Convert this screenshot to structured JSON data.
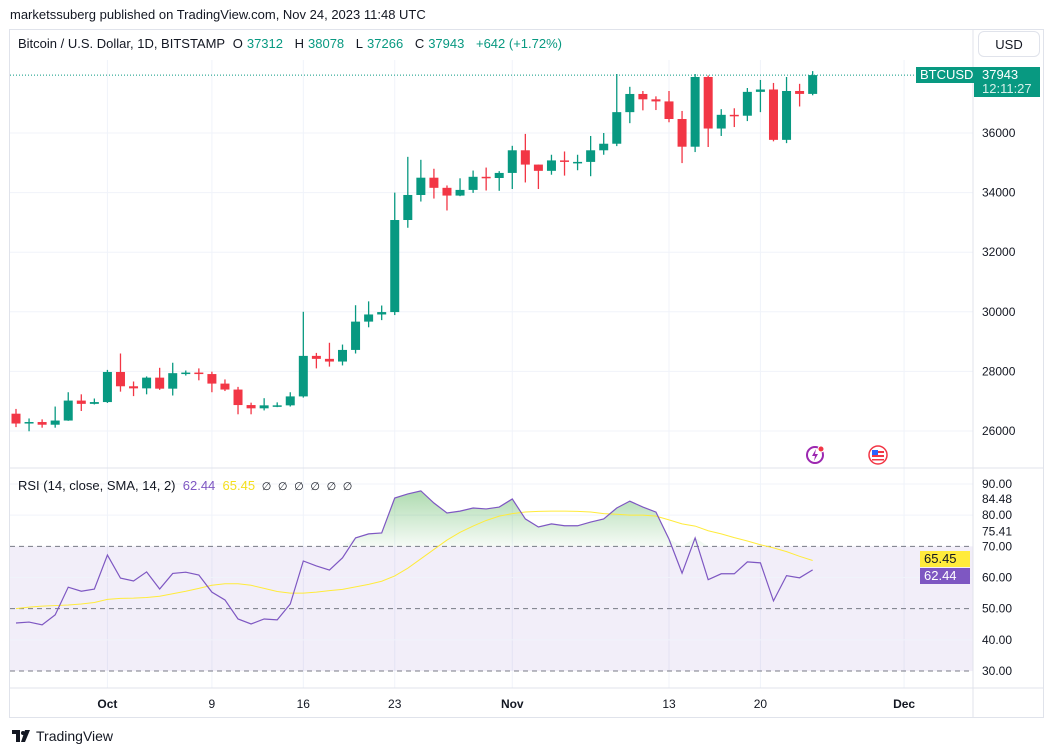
{
  "publisher_line": "marketssuberg published on TradingView.com, Nov 24, 2023 11:48 UTC",
  "legend": {
    "symbol": "Bitcoin / U.S. Dollar, 1D, BITSTAMP",
    "o_label": "O",
    "o": "37312",
    "h_label": "H",
    "h": "38078",
    "l_label": "L",
    "l": "37266",
    "c_label": "C",
    "c": "37943",
    "change": "+642 (+1.72%)"
  },
  "currency_button": "USD",
  "price_tag": {
    "symbol": "BTCUSD",
    "price": "37943",
    "countdown": "12:11:27"
  },
  "colors": {
    "up": "#089981",
    "down": "#f23645",
    "rsi": "#7e57c2",
    "sma": "#f5df1e"
  },
  "rsi_legend": {
    "label": "RSI (14, close, SMA, 14, 2)",
    "rsi_value": "62.44",
    "sma_value": "65.45",
    "empty_icons": [
      "∅",
      "∅",
      "∅",
      "∅",
      "∅",
      "∅"
    ]
  },
  "footer": {
    "brand": "TradingView"
  },
  "chart_data": {
    "type": "candlestick",
    "dates_start": "2023-09-24",
    "dates_end": "2023-11-24",
    "ohlc": [
      [
        26580,
        26740,
        26130,
        26250
      ],
      [
        26250,
        26420,
        25990,
        26300
      ],
      [
        26300,
        26390,
        26110,
        26210
      ],
      [
        26210,
        26820,
        26110,
        26350
      ],
      [
        26350,
        27300,
        26340,
        27020
      ],
      [
        27020,
        27230,
        26670,
        26910
      ],
      [
        26910,
        27090,
        26890,
        26970
      ],
      [
        26970,
        28050,
        26940,
        27980
      ],
      [
        27980,
        28600,
        27320,
        27500
      ],
      [
        27500,
        27660,
        27170,
        27430
      ],
      [
        27430,
        27830,
        27230,
        27790
      ],
      [
        27790,
        28120,
        27380,
        27420
      ],
      [
        27420,
        28290,
        27190,
        27940
      ],
      [
        27940,
        28030,
        27860,
        27960
      ],
      [
        27960,
        28100,
        27700,
        27910
      ],
      [
        27910,
        27990,
        27300,
        27590
      ],
      [
        27590,
        27730,
        27340,
        27390
      ],
      [
        27390,
        27480,
        26560,
        26870
      ],
      [
        26870,
        26950,
        26560,
        26760
      ],
      [
        26760,
        27100,
        26690,
        26860
      ],
      [
        26860,
        26960,
        26800,
        26860
      ],
      [
        26860,
        27300,
        26820,
        27160
      ],
      [
        27160,
        30000,
        27120,
        28520
      ],
      [
        28520,
        28620,
        28100,
        28420
      ],
      [
        28420,
        28960,
        28160,
        28330
      ],
      [
        28330,
        28900,
        28200,
        28720
      ],
      [
        28720,
        30220,
        28600,
        29670
      ],
      [
        29670,
        30350,
        29480,
        29910
      ],
      [
        29910,
        30210,
        29720,
        29990
      ],
      [
        29990,
        34000,
        29890,
        33080
      ],
      [
        33080,
        35200,
        32820,
        33920
      ],
      [
        33920,
        35100,
        33700,
        34500
      ],
      [
        34500,
        34800,
        33800,
        34160
      ],
      [
        34160,
        34240,
        33400,
        33900
      ],
      [
        33900,
        34480,
        33880,
        34090
      ],
      [
        34090,
        34740,
        33990,
        34530
      ],
      [
        34530,
        34840,
        34070,
        34490
      ],
      [
        34490,
        34720,
        34060,
        34660
      ],
      [
        34660,
        35570,
        34120,
        35420
      ],
      [
        35420,
        35970,
        34340,
        34940
      ],
      [
        34940,
        34940,
        34120,
        34730
      ],
      [
        34730,
        35270,
        34600,
        35080
      ],
      [
        35080,
        35380,
        34570,
        35030
      ],
      [
        35030,
        35270,
        34750,
        35030
      ],
      [
        35030,
        35900,
        34550,
        35420
      ],
      [
        35420,
        36000,
        35270,
        35640
      ],
      [
        35640,
        37980,
        35560,
        36700
      ],
      [
        36700,
        37550,
        36330,
        37310
      ],
      [
        37310,
        37410,
        36760,
        37130
      ],
      [
        37130,
        37230,
        36770,
        37060
      ],
      [
        37060,
        37410,
        36360,
        36470
      ],
      [
        36470,
        36740,
        34990,
        35540
      ],
      [
        35540,
        37980,
        35360,
        37880
      ],
      [
        37880,
        37930,
        35530,
        36150
      ],
      [
        36150,
        36800,
        35900,
        36610
      ],
      [
        36610,
        36830,
        36200,
        36580
      ],
      [
        36580,
        37510,
        36400,
        37380
      ],
      [
        37380,
        37780,
        36700,
        37460
      ],
      [
        37460,
        37680,
        35720,
        35770
      ],
      [
        35770,
        37880,
        35660,
        37410
      ],
      [
        37410,
        37650,
        36890,
        37312
      ],
      [
        37312,
        38078,
        37266,
        37943
      ]
    ],
    "last_price": 37943,
    "price_ticks": [
      "26000",
      "28000",
      "30000",
      "32000",
      "34000",
      "36000"
    ],
    "x_ticks": [
      {
        "label": "Oct",
        "index": 7
      },
      {
        "label": "9",
        "index": 15
      },
      {
        "label": "16",
        "index": 22
      },
      {
        "label": "23",
        "index": 29
      },
      {
        "label": "Nov",
        "index": 38
      },
      {
        "label": "13",
        "index": 50
      },
      {
        "label": "20",
        "index": 57
      },
      {
        "label": "Dec",
        "index": 68
      }
    ],
    "rsi": [
      45.4,
      45.7,
      44.8,
      48,
      56.9,
      55.6,
      56.3,
      67.2,
      59.8,
      58.9,
      61.8,
      56.3,
      61.3,
      61.7,
      60.8,
      55.3,
      52.8,
      46.7,
      45.1,
      46.7,
      46.4,
      51.5,
      65.3,
      63.7,
      62.4,
      66.3,
      72.7,
      74,
      74.3,
      85.5,
      86.8,
      87.8,
      83.9,
      80.7,
      81.3,
      82.3,
      82,
      82.6,
      85.2,
      78.8,
      76.2,
      77.2,
      76.6,
      76.6,
      77.8,
      78.8,
      82.3,
      84.5,
      82.6,
      81,
      72.3,
      61.4,
      72.7,
      59.3,
      61.2,
      61.2,
      65,
      64.7,
      52.5,
      60.6,
      59.9,
      62.44
    ],
    "rsi_sma": [
      50,
      50.5,
      50.8,
      51,
      51.2,
      51.5,
      52,
      53,
      53.3,
      53.4,
      53.6,
      54,
      54.8,
      55.6,
      56.5,
      57.5,
      58,
      58,
      57.5,
      56.5,
      55.5,
      55,
      55,
      55.3,
      55.8,
      56.2,
      57,
      57.8,
      58.8,
      60.5,
      63,
      66,
      69,
      72,
      74.5,
      76.5,
      78.3,
      79.7,
      80.5,
      81,
      81.2,
      81.3,
      81.3,
      81.2,
      81,
      80.5,
      80.3,
      80,
      80,
      79.7,
      78.5,
      77.2,
      76.5,
      75,
      74,
      72.8,
      71.7,
      70.5,
      69.5,
      68.3,
      66.8,
      65.45
    ],
    "rsi_ticks": [
      "90.00",
      "84.48",
      "80.00",
      "75.41",
      "70.00",
      "60.00",
      "50.00",
      "40.00",
      "30.00"
    ],
    "rsi_bands": {
      "upper": 70,
      "middle": 50,
      "lower": 30
    }
  }
}
